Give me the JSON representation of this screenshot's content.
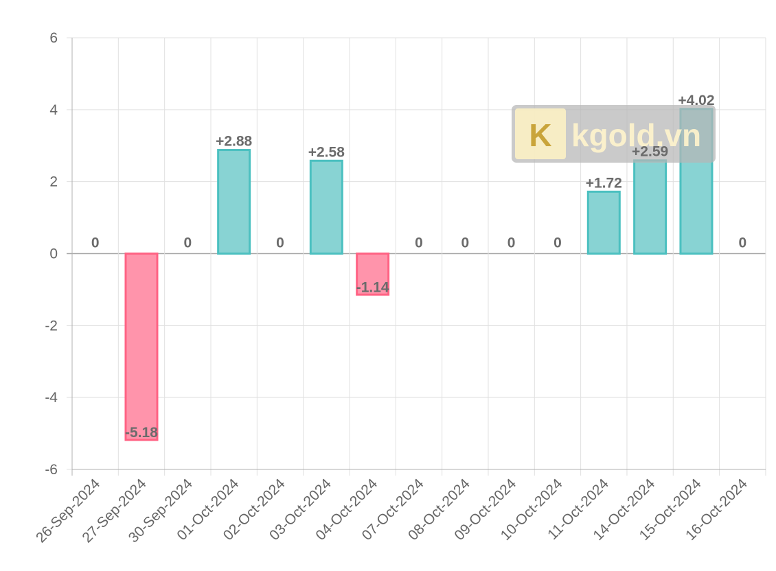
{
  "chart_data": {
    "type": "bar",
    "title": "",
    "xlabel": "",
    "ylabel": "",
    "categories": [
      "26-Sep-2024",
      "27-Sep-2024",
      "30-Sep-2024",
      "01-Oct-2024",
      "02-Oct-2024",
      "03-Oct-2024",
      "04-Oct-2024",
      "07-Oct-2024",
      "08-Oct-2024",
      "09-Oct-2024",
      "10-Oct-2024",
      "11-Oct-2024",
      "14-Oct-2024",
      "15-Oct-2024",
      "16-Oct-2024"
    ],
    "values": [
      0,
      -5.18,
      0,
      2.88,
      0,
      2.58,
      -1.14,
      0,
      0,
      0,
      0,
      1.72,
      2.59,
      4.02,
      0
    ],
    "data_labels": [
      "0",
      "-5.18",
      "0",
      "+2.88",
      "0",
      "+2.58",
      "-1.14",
      "0",
      "0",
      "0",
      "0",
      "+1.72",
      "+2.59",
      "+4.02",
      "0"
    ],
    "ylim": [
      -6,
      6
    ],
    "yticks": [
      -6,
      -4,
      -2,
      0,
      2,
      4,
      6
    ],
    "ytick_labels": [
      "-6",
      "-4",
      "-2",
      "0",
      "2",
      "4",
      "6"
    ],
    "grid": true,
    "legend": "none",
    "colors": {
      "positive_fill": "#88d3d3",
      "positive_stroke": "#4bc0c0",
      "negative_fill": "#ff94ab",
      "negative_stroke": "#ff6384",
      "grid": "#e0e0e0",
      "axis": "#999999"
    }
  },
  "watermark": {
    "logo_letter": "K",
    "text": "kgold.vn"
  }
}
